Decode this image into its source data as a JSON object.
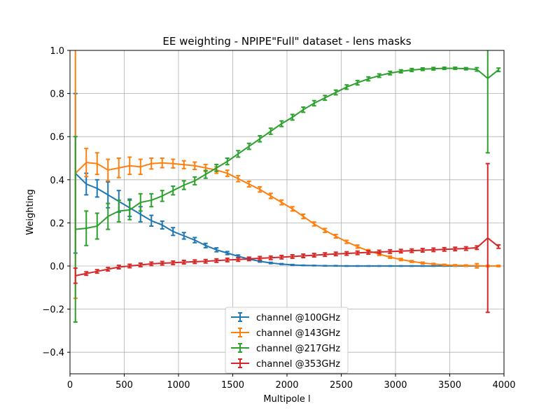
{
  "chart_data": {
    "type": "line",
    "title": "EE weighting - NPIPE\"Full\" dataset - lens masks",
    "xlabel": "Multipole l",
    "ylabel": "Weighting",
    "xlim": [
      0,
      4000
    ],
    "ylim": [
      -0.5,
      1.0
    ],
    "xticks": [
      0,
      500,
      1000,
      1500,
      2000,
      2500,
      3000,
      3500,
      4000
    ],
    "yticks": [
      -0.4,
      -0.2,
      0.0,
      0.2,
      0.4,
      0.6,
      0.8,
      1.0
    ],
    "ytick_labels": [
      "−0.4",
      "−0.2",
      "0.0",
      "0.2",
      "0.4",
      "0.6",
      "0.8",
      "1.0"
    ],
    "grid": true,
    "legend_position": "bottom-center",
    "x": [
      50,
      150,
      250,
      350,
      450,
      550,
      650,
      750,
      850,
      950,
      1050,
      1150,
      1250,
      1350,
      1450,
      1550,
      1650,
      1750,
      1850,
      1950,
      2050,
      2150,
      2250,
      2350,
      2450,
      2550,
      2650,
      2750,
      2850,
      2950,
      3050,
      3150,
      3250,
      3350,
      3450,
      3550,
      3650,
      3750,
      3850,
      3950
    ],
    "series": [
      {
        "name": "channel @100GHz",
        "color": "#1f77b4",
        "values": [
          0.43,
          0.38,
          0.36,
          0.33,
          0.3,
          0.27,
          0.24,
          0.21,
          0.19,
          0.16,
          0.14,
          0.12,
          0.095,
          0.075,
          0.06,
          0.045,
          0.032,
          0.022,
          0.014,
          0.009,
          0.005,
          0.003,
          0.002,
          0.001,
          0.001,
          0.0,
          0.0,
          0.0,
          0.0,
          0.0,
          0.0,
          0.0,
          0.0,
          0.0,
          0.0,
          0.0,
          0.0,
          0.0,
          0.0,
          0.0
        ],
        "errors": [
          0.37,
          0.05,
          0.04,
          0.06,
          0.05,
          0.04,
          0.035,
          0.025,
          0.018,
          0.018,
          0.015,
          0.012,
          0.01,
          0.009,
          0.007,
          0.006,
          0.005,
          0.004,
          0.003,
          0.002,
          0.002,
          0.001,
          0.001,
          0.001,
          0.001,
          0.001,
          0.001,
          0.001,
          0.001,
          0.001,
          0.001,
          0.001,
          0.001,
          0.001,
          0.001,
          0.001,
          0.001,
          0.001,
          0.001,
          0.001
        ]
      },
      {
        "name": "channel @143GHz",
        "color": "#ff7f0e",
        "values": [
          0.43,
          0.48,
          0.475,
          0.445,
          0.455,
          0.465,
          0.46,
          0.475,
          0.478,
          0.475,
          0.47,
          0.465,
          0.455,
          0.445,
          0.43,
          0.405,
          0.38,
          0.355,
          0.325,
          0.295,
          0.265,
          0.23,
          0.195,
          0.165,
          0.138,
          0.112,
          0.09,
          0.07,
          0.055,
          0.041,
          0.03,
          0.021,
          0.014,
          0.009,
          0.005,
          0.003,
          0.002,
          0.001,
          0.0,
          0.0
        ],
        "errors": [
          0.58,
          0.065,
          0.05,
          0.05,
          0.045,
          0.04,
          0.035,
          0.025,
          0.022,
          0.02,
          0.018,
          0.017,
          0.016,
          0.015,
          0.014,
          0.014,
          0.013,
          0.012,
          0.012,
          0.011,
          0.01,
          0.01,
          0.009,
          0.009,
          0.008,
          0.007,
          0.007,
          0.006,
          0.006,
          0.005,
          0.005,
          0.004,
          0.004,
          0.003,
          0.003,
          0.003,
          0.003,
          0.01,
          0.003,
          0.003
        ]
      },
      {
        "name": "channel @217GHz",
        "color": "#2ca02c",
        "values": [
          0.17,
          0.175,
          0.185,
          0.23,
          0.255,
          0.26,
          0.295,
          0.305,
          0.325,
          0.35,
          0.375,
          0.395,
          0.425,
          0.455,
          0.485,
          0.52,
          0.555,
          0.59,
          0.625,
          0.66,
          0.69,
          0.725,
          0.755,
          0.78,
          0.805,
          0.83,
          0.85,
          0.868,
          0.883,
          0.895,
          0.903,
          0.909,
          0.913,
          0.915,
          0.917,
          0.917,
          0.915,
          0.912,
          0.87,
          0.91
        ],
        "errors": [
          0.43,
          0.08,
          0.06,
          0.06,
          0.05,
          0.045,
          0.04,
          0.03,
          0.025,
          0.02,
          0.02,
          0.018,
          0.018,
          0.016,
          0.015,
          0.015,
          0.014,
          0.014,
          0.014,
          0.013,
          0.013,
          0.012,
          0.012,
          0.011,
          0.011,
          0.01,
          0.01,
          0.009,
          0.008,
          0.008,
          0.007,
          0.007,
          0.006,
          0.006,
          0.005,
          0.005,
          0.005,
          0.008,
          0.345,
          0.008
        ]
      },
      {
        "name": "channel @353GHz",
        "color": "#d62728",
        "values": [
          -0.045,
          -0.035,
          -0.025,
          -0.015,
          -0.005,
          0.0,
          0.005,
          0.01,
          0.013,
          0.015,
          0.018,
          0.02,
          0.022,
          0.025,
          0.028,
          0.03,
          0.033,
          0.036,
          0.038,
          0.041,
          0.044,
          0.047,
          0.05,
          0.053,
          0.056,
          0.058,
          0.061,
          0.063,
          0.065,
          0.067,
          0.069,
          0.071,
          0.073,
          0.075,
          0.077,
          0.079,
          0.081,
          0.085,
          0.13,
          0.09
        ]
      }
    ]
  }
}
